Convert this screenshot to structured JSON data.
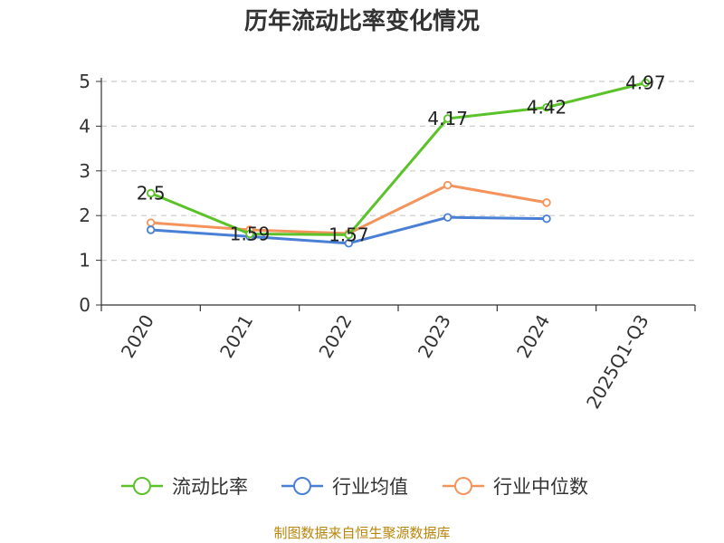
{
  "chart_data": {
    "type": "line",
    "title": "历年流动比率变化情况",
    "categories": [
      "2020",
      "2021",
      "2022",
      "2023",
      "2024",
      "2025Q1-Q3"
    ],
    "ylim": [
      0,
      5
    ],
    "yticks": [
      0,
      1,
      2,
      3,
      4,
      5
    ],
    "grid": true,
    "legend_position": "bottom",
    "series": [
      {
        "name": "流动比率",
        "color": "#5cc22a",
        "values": [
          2.5,
          1.59,
          1.57,
          4.17,
          4.42,
          4.97
        ],
        "labels": [
          "2.5",
          "1.59",
          "1.57",
          "4.17",
          "4.42",
          "4.97"
        ]
      },
      {
        "name": "行业均值",
        "color": "#4a7fd6",
        "values": [
          1.68,
          1.53,
          1.38,
          1.96,
          1.93,
          null
        ]
      },
      {
        "name": "行业中位数",
        "color": "#f4935c",
        "values": [
          1.84,
          1.68,
          1.6,
          2.68,
          2.29,
          null
        ]
      }
    ]
  },
  "source_text": "制图数据来自恒生聚源数据库"
}
